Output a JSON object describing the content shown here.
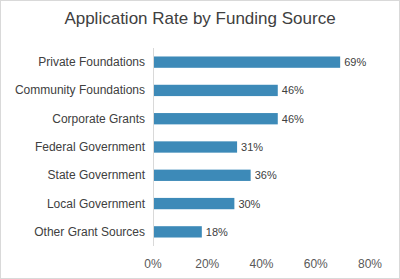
{
  "chart_data": {
    "type": "bar",
    "orientation": "horizontal",
    "title": "Application Rate by Funding Source",
    "categories": [
      "Private Foundations",
      "Community Foundations",
      "Corporate Grants",
      "Federal Government",
      "State Government",
      "Local Government",
      "Other Grant Sources"
    ],
    "values": [
      69,
      46,
      46,
      31,
      36,
      30,
      18
    ],
    "value_labels": [
      "69%",
      "46%",
      "46%",
      "31%",
      "36%",
      "30%",
      "18%"
    ],
    "color": "#3d8ab8",
    "xlim": [
      0,
      80
    ],
    "xticks": [
      {
        "value": 0,
        "label": "0%"
      },
      {
        "value": 20,
        "label": "20%"
      },
      {
        "value": 40,
        "label": "40%"
      },
      {
        "value": 60,
        "label": "60%"
      },
      {
        "value": 80,
        "label": "80%"
      }
    ],
    "grid": false,
    "data_labels": true
  }
}
